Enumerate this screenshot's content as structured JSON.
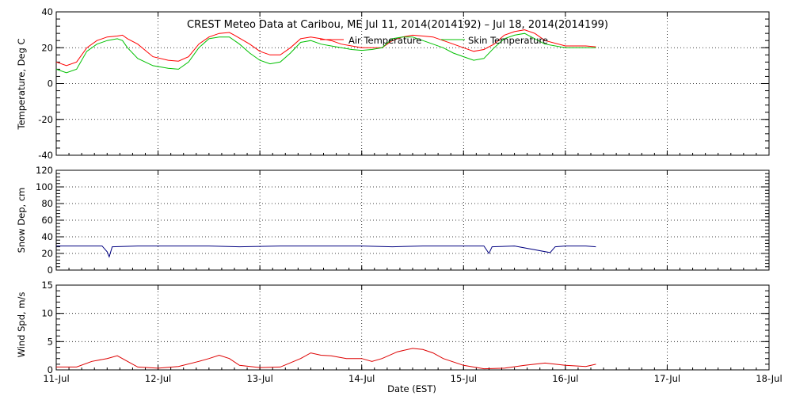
{
  "chart_data": [
    {
      "type": "line",
      "title": "CREST Meteo Data at Caribou, ME   Jul 11, 2014(2014192) – Jul 18, 2014(2014199)",
      "ylabel": "Temperature, Deg C",
      "xlabel": "",
      "ylim": [
        -40,
        40
      ],
      "xlim": [
        0,
        7
      ],
      "yticks": [
        -40,
        -20,
        0,
        20,
        40
      ],
      "grid": true,
      "legend": "top-right",
      "series": [
        {
          "name": "Air Temperature",
          "color": "#ff0000",
          "points": [
            [
              0.0,
              12
            ],
            [
              0.1,
              10
            ],
            [
              0.2,
              12
            ],
            [
              0.3,
              20
            ],
            [
              0.4,
              24
            ],
            [
              0.5,
              26
            ],
            [
              0.6,
              26.5
            ],
            [
              0.65,
              27
            ],
            [
              0.7,
              25
            ],
            [
              0.8,
              22
            ],
            [
              0.95,
              15
            ],
            [
              1.1,
              13
            ],
            [
              1.2,
              12.5
            ],
            [
              1.3,
              15
            ],
            [
              1.4,
              22
            ],
            [
              1.5,
              26
            ],
            [
              1.6,
              28
            ],
            [
              1.7,
              28.5
            ],
            [
              1.75,
              27
            ],
            [
              1.9,
              22
            ],
            [
              2.0,
              18
            ],
            [
              2.1,
              16
            ],
            [
              2.2,
              16
            ],
            [
              2.3,
              20
            ],
            [
              2.4,
              25
            ],
            [
              2.5,
              26
            ],
            [
              2.6,
              25
            ],
            [
              2.7,
              24
            ],
            [
              2.8,
              22
            ],
            [
              2.9,
              21
            ],
            [
              3.0,
              20
            ],
            [
              3.1,
              20
            ],
            [
              3.2,
              20
            ],
            [
              3.3,
              24
            ],
            [
              3.4,
              26
            ],
            [
              3.5,
              27
            ],
            [
              3.6,
              26.5
            ],
            [
              3.7,
              26
            ],
            [
              3.8,
              24
            ],
            [
              3.9,
              22
            ],
            [
              4.0,
              20
            ],
            [
              4.1,
              18
            ],
            [
              4.2,
              19
            ],
            [
              4.3,
              22
            ],
            [
              4.4,
              27
            ],
            [
              4.5,
              29
            ],
            [
              4.6,
              30
            ],
            [
              4.7,
              28
            ],
            [
              4.8,
              24
            ],
            [
              5.0,
              21
            ],
            [
              5.2,
              21
            ],
            [
              5.3,
              20.5
            ]
          ]
        },
        {
          "name": "Skin Temperature",
          "color": "#00c000",
          "points": [
            [
              0.0,
              8
            ],
            [
              0.1,
              6
            ],
            [
              0.2,
              8
            ],
            [
              0.3,
              18
            ],
            [
              0.4,
              22
            ],
            [
              0.5,
              24
            ],
            [
              0.6,
              25
            ],
            [
              0.65,
              24
            ],
            [
              0.7,
              20
            ],
            [
              0.8,
              14
            ],
            [
              0.95,
              10
            ],
            [
              1.1,
              8.5
            ],
            [
              1.2,
              8
            ],
            [
              1.3,
              12
            ],
            [
              1.4,
              20
            ],
            [
              1.5,
              25
            ],
            [
              1.6,
              26
            ],
            [
              1.7,
              26
            ],
            [
              1.8,
              22
            ],
            [
              1.9,
              17
            ],
            [
              2.0,
              13
            ],
            [
              2.1,
              11
            ],
            [
              2.2,
              12
            ],
            [
              2.3,
              17
            ],
            [
              2.4,
              23
            ],
            [
              2.5,
              24
            ],
            [
              2.6,
              22
            ],
            [
              2.7,
              21
            ],
            [
              2.8,
              20
            ],
            [
              2.9,
              19
            ],
            [
              3.0,
              18.5
            ],
            [
              3.1,
              19
            ],
            [
              3.2,
              20
            ],
            [
              3.3,
              25
            ],
            [
              3.4,
              26
            ],
            [
              3.5,
              26
            ],
            [
              3.6,
              24
            ],
            [
              3.7,
              22
            ],
            [
              3.8,
              20
            ],
            [
              3.9,
              17
            ],
            [
              4.0,
              15
            ],
            [
              4.1,
              13
            ],
            [
              4.2,
              14
            ],
            [
              4.3,
              20
            ],
            [
              4.4,
              25
            ],
            [
              4.5,
              27
            ],
            [
              4.6,
              28
            ],
            [
              4.7,
              25
            ],
            [
              4.8,
              22
            ],
            [
              5.0,
              20
            ],
            [
              5.2,
              20
            ],
            [
              5.3,
              20
            ]
          ]
        }
      ]
    },
    {
      "type": "line",
      "ylabel": "Snow Dep, cm",
      "ylim": [
        0,
        120
      ],
      "xlim": [
        0,
        7
      ],
      "yticks": [
        0,
        20,
        40,
        60,
        80,
        100,
        120
      ],
      "grid": true,
      "series": [
        {
          "color": "#000080",
          "points": [
            [
              0.0,
              29
            ],
            [
              0.3,
              29
            ],
            [
              0.45,
              29
            ],
            [
              0.5,
              22
            ],
            [
              0.52,
              16
            ],
            [
              0.55,
              28
            ],
            [
              0.8,
              29
            ],
            [
              1.2,
              29
            ],
            [
              1.5,
              29
            ],
            [
              1.8,
              28
            ],
            [
              2.2,
              29
            ],
            [
              2.6,
              29
            ],
            [
              3.0,
              29
            ],
            [
              3.3,
              28
            ],
            [
              3.6,
              29
            ],
            [
              4.0,
              29
            ],
            [
              4.2,
              29
            ],
            [
              4.25,
              20
            ],
            [
              4.28,
              28
            ],
            [
              4.5,
              29
            ],
            [
              4.85,
              21
            ],
            [
              4.9,
              28
            ],
            [
              5.0,
              29
            ],
            [
              5.2,
              29
            ],
            [
              5.3,
              28
            ]
          ]
        }
      ]
    },
    {
      "type": "line",
      "ylabel": "Wind Spd, m/s",
      "xlabel": "Date (EST)",
      "ylim": [
        0,
        15
      ],
      "xlim": [
        0,
        7
      ],
      "yticks": [
        0,
        5,
        10,
        15
      ],
      "xticks": [
        "11-Jul",
        "12-Jul",
        "13-Jul",
        "14-Jul",
        "15-Jul",
        "16-Jul",
        "17-Jul",
        "18-Jul"
      ],
      "grid": true,
      "series": [
        {
          "color": "#dd0000",
          "points": [
            [
              0.0,
              0.5
            ],
            [
              0.2,
              0.5
            ],
            [
              0.35,
              1.5
            ],
            [
              0.5,
              2.0
            ],
            [
              0.6,
              2.5
            ],
            [
              0.7,
              1.5
            ],
            [
              0.8,
              0.5
            ],
            [
              1.0,
              0.3
            ],
            [
              1.2,
              0.6
            ],
            [
              1.4,
              1.5
            ],
            [
              1.5,
              2.0
            ],
            [
              1.6,
              2.6
            ],
            [
              1.7,
              2.0
            ],
            [
              1.8,
              0.8
            ],
            [
              2.0,
              0.4
            ],
            [
              2.2,
              0.5
            ],
            [
              2.4,
              2.0
            ],
            [
              2.5,
              3.0
            ],
            [
              2.6,
              2.6
            ],
            [
              2.7,
              2.5
            ],
            [
              2.85,
              2.0
            ],
            [
              3.0,
              2.0
            ],
            [
              3.1,
              1.5
            ],
            [
              3.2,
              2.0
            ],
            [
              3.35,
              3.2
            ],
            [
              3.5,
              3.8
            ],
            [
              3.6,
              3.6
            ],
            [
              3.7,
              3.0
            ],
            [
              3.8,
              2.0
            ],
            [
              4.0,
              0.8
            ],
            [
              4.2,
              0.2
            ],
            [
              4.4,
              0.3
            ],
            [
              4.6,
              0.8
            ],
            [
              4.8,
              1.2
            ],
            [
              5.0,
              0.8
            ],
            [
              5.2,
              0.6
            ],
            [
              5.3,
              1.0
            ]
          ]
        }
      ]
    }
  ]
}
